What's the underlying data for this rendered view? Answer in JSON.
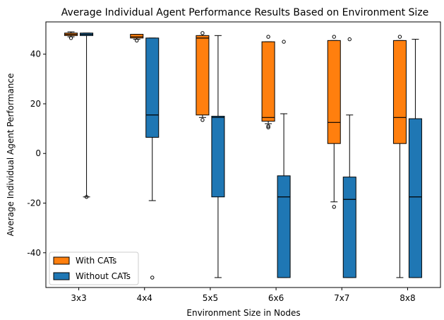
{
  "chart_data": {
    "type": "boxplot",
    "title": "Average Individual Agent Performance Results Based on Environment Size",
    "xlabel": "Environment Size in Nodes",
    "ylabel": "Average Individual Agent Performance",
    "categories": [
      "3x3",
      "4x4",
      "5x5",
      "6x6",
      "7x7",
      "8x8"
    ],
    "ylim": [
      -54,
      53
    ],
    "yticks": [
      -40,
      -20,
      0,
      20,
      40
    ],
    "grid": false,
    "legend_position": "lower-left",
    "series": [
      {
        "name": "With CATs",
        "color": "#ff7f0e",
        "boxes": [
          {
            "whislo": 47.0,
            "q1": 47.5,
            "med": 48.0,
            "q3": 48.5,
            "whishi": 49.0,
            "fliers": [
              46.5
            ]
          },
          {
            "whislo": 46.0,
            "q1": 46.5,
            "med": 47.0,
            "q3": 48.0,
            "whishi": 48.0,
            "fliers": [
              45.5
            ]
          },
          {
            "whislo": 14.5,
            "q1": 15.5,
            "med": 46.5,
            "q3": 47.5,
            "whishi": 47.5,
            "fliers": [
              13.5,
              48.5
            ]
          },
          {
            "whislo": 12.0,
            "q1": 13.0,
            "med": 14.5,
            "q3": 45.0,
            "whishi": 45.0,
            "fliers": [
              10.5,
              11.0,
              47.0
            ]
          },
          {
            "whislo": -19.5,
            "q1": 4.0,
            "med": 12.5,
            "q3": 45.5,
            "whishi": 45.5,
            "fliers": [
              -21.5,
              47.0
            ]
          },
          {
            "whislo": -50.0,
            "q1": 4.0,
            "med": 14.5,
            "q3": 45.5,
            "whishi": 45.5,
            "fliers": [
              47.0
            ]
          }
        ]
      },
      {
        "name": "Without CATs",
        "color": "#1f77b4",
        "boxes": [
          {
            "whislo": -17.5,
            "q1": 47.5,
            "med": 48.0,
            "q3": 48.5,
            "whishi": 48.5,
            "fliers": [
              -17.5
            ]
          },
          {
            "whislo": -19.0,
            "q1": 6.5,
            "med": 15.5,
            "q3": 46.5,
            "whishi": 46.5,
            "fliers": [
              -50.0
            ]
          },
          {
            "whislo": -50.0,
            "q1": -17.5,
            "med": 14.5,
            "q3": 15.0,
            "whishi": 47.5,
            "fliers": []
          },
          {
            "whislo": -50.0,
            "q1": -50.0,
            "med": -17.5,
            "q3": -9.0,
            "whishi": 16.0,
            "fliers": [
              45.0
            ]
          },
          {
            "whislo": -50.0,
            "q1": -50.0,
            "med": -18.5,
            "q3": -9.5,
            "whishi": 15.5,
            "fliers": [
              46.0
            ]
          },
          {
            "whislo": -50.0,
            "q1": -50.0,
            "med": -17.5,
            "q3": 14.0,
            "whishi": 46.0,
            "fliers": []
          }
        ]
      }
    ]
  }
}
